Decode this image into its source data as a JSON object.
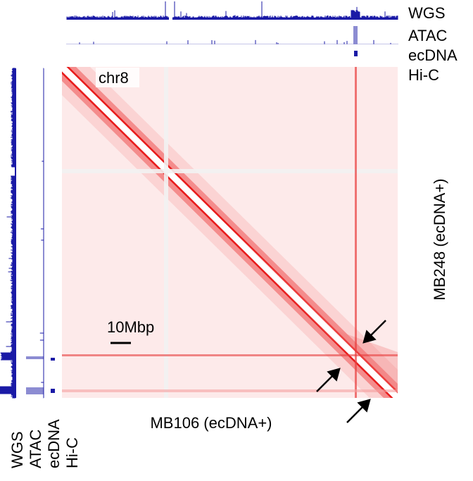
{
  "top_tracks": [
    "WGS",
    "ATAC",
    "ecDNA",
    "Hi-C"
  ],
  "left_tracks": [
    "WGS",
    "ATAC",
    "ecDNA",
    "Hi-C"
  ],
  "chromosome": "chr8",
  "y_axis_label": "MB248 (ecDNA+)",
  "x_axis_label": "MB106 (ecDNA+)",
  "scale_bar": "10Mbp"
}
